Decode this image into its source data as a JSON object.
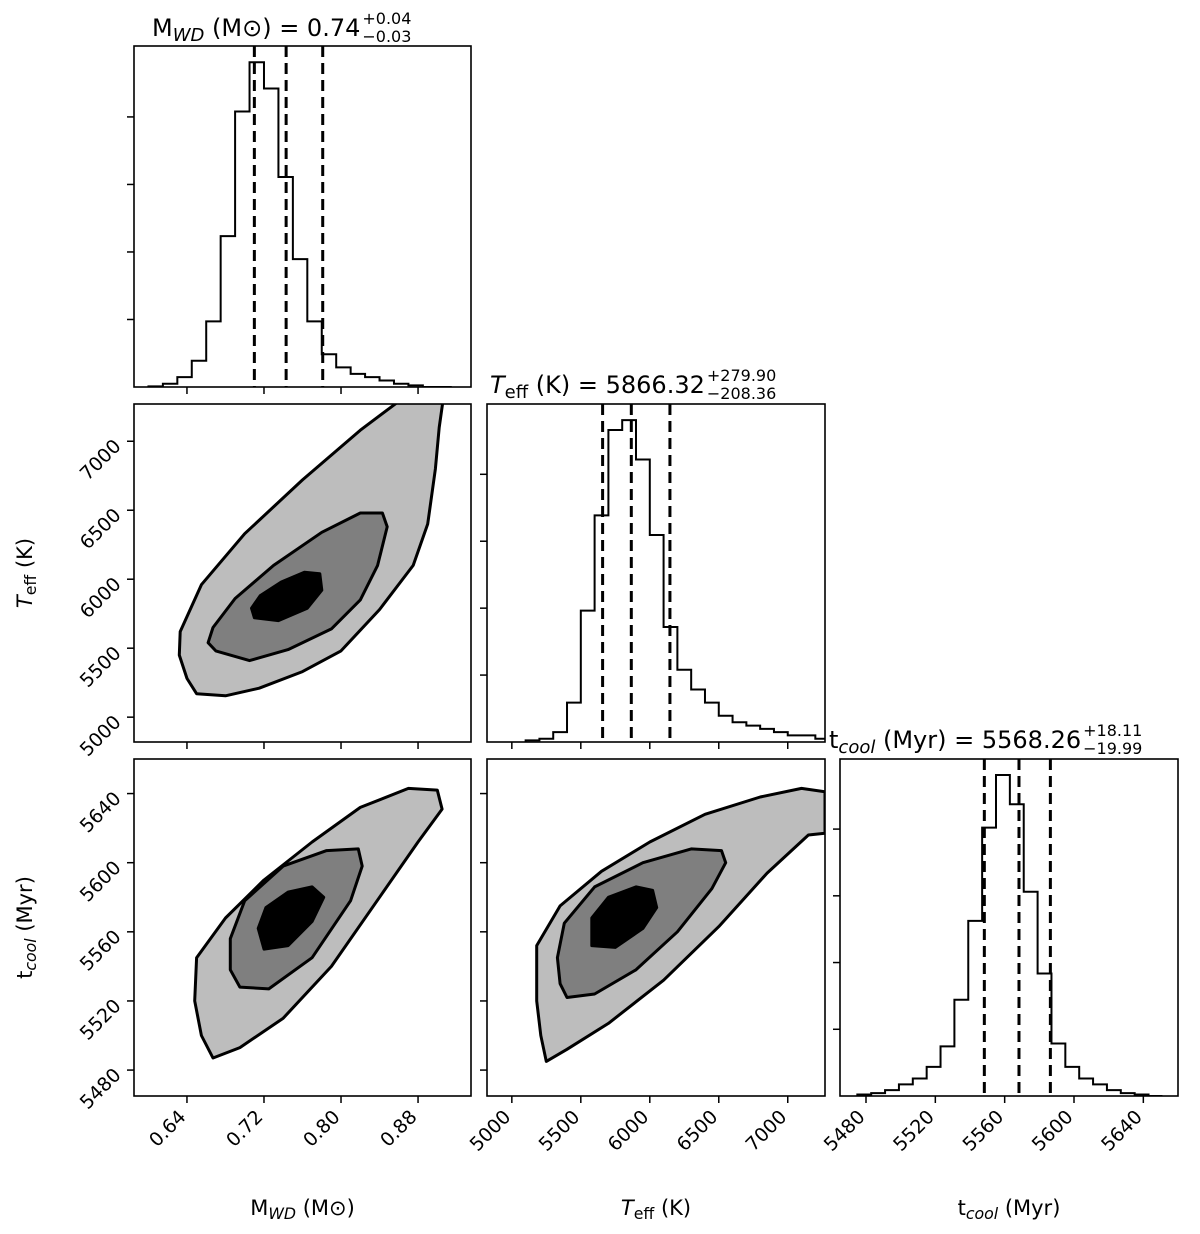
{
  "chart_data": {
    "type": "corner",
    "colors": {
      "outer_contour": "#bdbdbd",
      "middle_contour": "#7f7f7f",
      "inner_contour": "#000000",
      "line": "#000000"
    },
    "parameters": [
      {
        "key": "mwd",
        "label_main": "M",
        "label_sub": "WD",
        "label_unit": " (M⊙)",
        "range": [
          0.585,
          0.935
        ],
        "ticks": [
          0.64,
          0.72,
          0.8,
          0.88
        ],
        "tick_labels": [
          "0.64",
          "0.72",
          "0.80",
          "0.88"
        ],
        "title_prefix": " = 0.74",
        "title_plus": "+0.04",
        "title_minus": "−0.03",
        "quantiles": [
          0.71,
          0.743,
          0.781
        ],
        "hist_edges": [
          0.6,
          0.615,
          0.63,
          0.645,
          0.66,
          0.675,
          0.69,
          0.705,
          0.72,
          0.735,
          0.75,
          0.765,
          0.78,
          0.795,
          0.81,
          0.825,
          0.84,
          0.855,
          0.87,
          0.885,
          0.9,
          0.915
        ],
        "hist_counts": [
          0.2,
          1,
          3,
          8,
          20,
          46,
          84,
          99,
          91,
          64,
          39,
          20,
          10,
          6,
          4,
          3,
          2,
          1,
          0.5,
          0,
          0
        ]
      },
      {
        "key": "teff",
        "label_main": "T",
        "label_sub": "eff",
        "label_unit": " (K)",
        "range": [
          4820,
          7270
        ],
        "ticks": [
          5000,
          5500,
          6000,
          6500,
          7000
        ],
        "tick_labels": [
          "5000",
          "5500",
          "6000",
          "6500",
          "7000"
        ],
        "title_prefix": " = 5866.32",
        "title_plus": "+279.90",
        "title_minus": "−208.36",
        "quantiles": [
          5658,
          5866,
          6146
        ],
        "hist_edges": [
          5100,
          5200,
          5300,
          5400,
          5500,
          5600,
          5700,
          5800,
          5900,
          6000,
          6100,
          6200,
          6300,
          6400,
          6500,
          6600,
          6700,
          6800,
          6900,
          7000,
          7100,
          7200,
          7300
        ],
        "hist_counts": [
          0.5,
          1,
          3,
          12,
          40,
          69,
          95,
          98,
          86,
          63,
          35,
          22,
          16,
          12,
          8,
          6,
          5,
          4,
          3,
          2,
          2,
          1
        ]
      },
      {
        "key": "tcool",
        "label_main": "t",
        "label_sub": "cool",
        "label_unit": " (Myr)",
        "range": [
          5465,
          5660
        ],
        "ticks": [
          5480,
          5520,
          5560,
          5600,
          5640
        ],
        "tick_labels": [
          "5480",
          "5520",
          "5560",
          "5600",
          "5640"
        ],
        "title_prefix": " = 5568.26",
        "title_plus": "+18.11",
        "title_minus": "−19.99",
        "quantiles": [
          5548.27,
          5568.26,
          5586.37
        ],
        "hist_edges": [
          5475,
          5483,
          5491,
          5499,
          5507,
          5515,
          5523,
          5531,
          5539,
          5547,
          5555,
          5563,
          5571,
          5579,
          5587,
          5595,
          5603,
          5611,
          5619,
          5627,
          5635,
          5643,
          5651
        ],
        "hist_counts": [
          0.5,
          1,
          2,
          4,
          6,
          10,
          17,
          33,
          60,
          92,
          110,
          100,
          70,
          42,
          18,
          10,
          6,
          4,
          2,
          1,
          0.5,
          0
        ]
      }
    ],
    "contours": [
      {
        "x_key": "mwd",
        "y_key": "teff",
        "levels": [
          [
            [
              0.65,
              5170
            ],
            [
              0.68,
              5155
            ],
            [
              0.715,
              5210
            ],
            [
              0.76,
              5330
            ],
            [
              0.8,
              5480
            ],
            [
              0.84,
              5780
            ],
            [
              0.875,
              6100
            ],
            [
              0.89,
              6400
            ],
            [
              0.898,
              6800
            ],
            [
              0.902,
              7100
            ],
            [
              0.906,
              7300
            ],
            [
              0.862,
              7300
            ],
            [
              0.82,
              7080
            ],
            [
              0.76,
              6720
            ],
            [
              0.7,
              6330
            ],
            [
              0.655,
              5960
            ],
            [
              0.633,
              5620
            ],
            [
              0.632,
              5450
            ],
            [
              0.64,
              5280
            ]
          ],
          [
            [
              0.67,
              5480
            ],
            [
              0.705,
              5410
            ],
            [
              0.745,
              5490
            ],
            [
              0.79,
              5640
            ],
            [
              0.82,
              5850
            ],
            [
              0.838,
              6100
            ],
            [
              0.848,
              6380
            ],
            [
              0.843,
              6480
            ],
            [
              0.82,
              6480
            ],
            [
              0.78,
              6340
            ],
            [
              0.73,
              6100
            ],
            [
              0.69,
              5860
            ],
            [
              0.667,
              5650
            ],
            [
              0.662,
              5540
            ]
          ],
          [
            [
              0.71,
              5720
            ],
            [
              0.735,
              5700
            ],
            [
              0.765,
              5790
            ],
            [
              0.78,
              5920
            ],
            [
              0.778,
              6040
            ],
            [
              0.762,
              6050
            ],
            [
              0.738,
              5980
            ],
            [
              0.716,
              5880
            ],
            [
              0.707,
              5790
            ]
          ]
        ]
      },
      {
        "x_key": "mwd",
        "y_key": "tcool",
        "levels": [
          [
            [
              0.667,
              5487
            ],
            [
              0.695,
              5493
            ],
            [
              0.74,
              5510
            ],
            [
              0.79,
              5540
            ],
            [
              0.84,
              5580
            ],
            [
              0.88,
              5612
            ],
            [
              0.905,
              5631
            ],
            [
              0.9,
              5642
            ],
            [
              0.87,
              5643
            ],
            [
              0.82,
              5632
            ],
            [
              0.77,
              5612
            ],
            [
              0.72,
              5590
            ],
            [
              0.68,
              5568
            ],
            [
              0.65,
              5545
            ],
            [
              0.648,
              5520
            ],
            [
              0.655,
              5500
            ]
          ],
          [
            [
              0.695,
              5528
            ],
            [
              0.725,
              5527
            ],
            [
              0.77,
              5545
            ],
            [
              0.81,
              5578
            ],
            [
              0.822,
              5598
            ],
            [
              0.818,
              5608
            ],
            [
              0.785,
              5607
            ],
            [
              0.74,
              5598
            ],
            [
              0.7,
              5578
            ],
            [
              0.685,
              5556
            ],
            [
              0.685,
              5538
            ]
          ],
          [
            [
              0.72,
              5550
            ],
            [
              0.745,
              5552
            ],
            [
              0.77,
              5566
            ],
            [
              0.782,
              5580
            ],
            [
              0.77,
              5586
            ],
            [
              0.745,
              5583
            ],
            [
              0.722,
              5574
            ],
            [
              0.714,
              5562
            ]
          ]
        ]
      },
      {
        "x_key": "teff",
        "y_key": "tcool",
        "levels": [
          [
            [
              5250,
              5485
            ],
            [
              5400,
              5492
            ],
            [
              5700,
              5507
            ],
            [
              6100,
              5532
            ],
            [
              6500,
              5563
            ],
            [
              6850,
              5594
            ],
            [
              7150,
              5616
            ],
            [
              7270,
              5617
            ],
            [
              7270,
              5641
            ],
            [
              7100,
              5643
            ],
            [
              6800,
              5638
            ],
            [
              6400,
              5628
            ],
            [
              6000,
              5612
            ],
            [
              5650,
              5595
            ],
            [
              5350,
              5575
            ],
            [
              5180,
              5552
            ],
            [
              5180,
              5520
            ],
            [
              5210,
              5500
            ]
          ],
          [
            [
              5400,
              5522
            ],
            [
              5600,
              5524
            ],
            [
              5900,
              5538
            ],
            [
              6200,
              5560
            ],
            [
              6450,
              5585
            ],
            [
              6550,
              5600
            ],
            [
              6520,
              5607
            ],
            [
              6300,
              5608
            ],
            [
              5950,
              5600
            ],
            [
              5600,
              5586
            ],
            [
              5380,
              5565
            ],
            [
              5330,
              5545
            ],
            [
              5350,
              5530
            ]
          ],
          [
            [
              5580,
              5552
            ],
            [
              5750,
              5551
            ],
            [
              5950,
              5562
            ],
            [
              6050,
              5574
            ],
            [
              6020,
              5584
            ],
            [
              5900,
              5586
            ],
            [
              5700,
              5580
            ],
            [
              5580,
              5568
            ]
          ]
        ]
      }
    ]
  }
}
